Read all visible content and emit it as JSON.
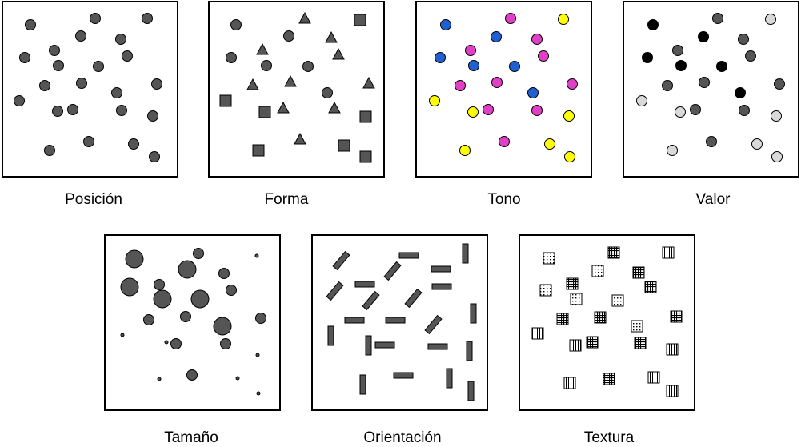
{
  "panels": [
    {
      "label": "Posición"
    },
    {
      "label": "Forma"
    },
    {
      "label": "Tono"
    },
    {
      "label": "Valor"
    },
    {
      "label": "Tamaño"
    },
    {
      "label": "Orientación"
    },
    {
      "label": "Textura"
    }
  ],
  "colors": {
    "mark_gray": "#555555",
    "blue": "#1f5fd0",
    "magenta": "#e040c8",
    "yellow": "#ffff00",
    "black": "#000000",
    "light_gray": "#d9d9d9"
  }
}
